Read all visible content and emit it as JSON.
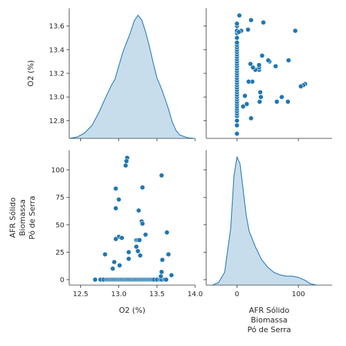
{
  "chart_data": {
    "type": "scatter",
    "variables": [
      "O2 (%)",
      "AFR Sólido\nBiomassa\nPó de Serra"
    ],
    "o2_ticks": [
      12.8,
      13.0,
      13.2,
      13.4,
      13.6
    ],
    "o2_xticks": [
      12.5,
      13.0,
      13.5,
      14.0
    ],
    "afr_ticks": [
      0,
      25,
      50,
      75,
      100
    ],
    "afr_xticks": [
      0,
      100
    ],
    "o2_range": [
      12.65,
      13.75
    ],
    "o2_xrange": [
      12.35,
      14.0
    ],
    "afr_range": [
      -5,
      118
    ],
    "afr_xrange": [
      -50,
      155
    ],
    "grid": false,
    "points": [
      {
        "o2": 12.69,
        "afr": 0
      },
      {
        "o2": 12.76,
        "afr": 0
      },
      {
        "o2": 12.8,
        "afr": 0
      },
      {
        "o2": 12.84,
        "afr": 0
      },
      {
        "o2": 12.86,
        "afr": 0
      },
      {
        "o2": 12.88,
        "afr": 0
      },
      {
        "o2": 12.9,
        "afr": 0
      },
      {
        "o2": 12.92,
        "afr": 0
      },
      {
        "o2": 12.94,
        "afr": 0
      },
      {
        "o2": 12.96,
        "afr": 0
      },
      {
        "o2": 12.98,
        "afr": 0
      },
      {
        "o2": 13.0,
        "afr": 0
      },
      {
        "o2": 13.02,
        "afr": 0
      },
      {
        "o2": 13.04,
        "afr": 0
      },
      {
        "o2": 13.06,
        "afr": 0
      },
      {
        "o2": 13.08,
        "afr": 0
      },
      {
        "o2": 13.1,
        "afr": 0
      },
      {
        "o2": 13.12,
        "afr": 0
      },
      {
        "o2": 13.14,
        "afr": 0
      },
      {
        "o2": 13.16,
        "afr": 0
      },
      {
        "o2": 13.18,
        "afr": 0
      },
      {
        "o2": 13.2,
        "afr": 0
      },
      {
        "o2": 13.22,
        "afr": 0
      },
      {
        "o2": 13.24,
        "afr": 0
      },
      {
        "o2": 13.26,
        "afr": 0
      },
      {
        "o2": 13.28,
        "afr": 0
      },
      {
        "o2": 13.3,
        "afr": 0
      },
      {
        "o2": 13.32,
        "afr": 0
      },
      {
        "o2": 13.34,
        "afr": 0
      },
      {
        "o2": 13.36,
        "afr": 0
      },
      {
        "o2": 13.38,
        "afr": 0
      },
      {
        "o2": 13.4,
        "afr": 0
      },
      {
        "o2": 13.42,
        "afr": 0
      },
      {
        "o2": 13.44,
        "afr": 0
      },
      {
        "o2": 13.46,
        "afr": 0
      },
      {
        "o2": 13.5,
        "afr": 0
      },
      {
        "o2": 13.54,
        "afr": 0
      },
      {
        "o2": 13.56,
        "afr": 0
      },
      {
        "o2": 13.6,
        "afr": 0
      },
      {
        "o2": 13.62,
        "afr": 0
      },
      {
        "o2": 13.11,
        "afr": 111
      },
      {
        "o2": 13.1,
        "afr": 108
      },
      {
        "o2": 13.09,
        "afr": 104
      },
      {
        "o2": 13.56,
        "afr": 95
      },
      {
        "o2": 13.31,
        "afr": 84
      },
      {
        "o2": 12.96,
        "afr": 83
      },
      {
        "o2": 13.0,
        "afr": 73
      },
      {
        "o2": 12.96,
        "afr": 65
      },
      {
        "o2": 13.26,
        "afr": 63
      },
      {
        "o2": 13.3,
        "afr": 53
      },
      {
        "o2": 13.31,
        "afr": 51
      },
      {
        "o2": 13.35,
        "afr": 41
      },
      {
        "o2": 13.63,
        "afr": 43
      },
      {
        "o2": 13.0,
        "afr": 39
      },
      {
        "o2": 13.04,
        "afr": 38
      },
      {
        "o2": 12.96,
        "afr": 37
      },
      {
        "o2": 13.23,
        "afr": 36
      },
      {
        "o2": 13.25,
        "afr": 36
      },
      {
        "o2": 13.27,
        "afr": 36
      },
      {
        "o2": 13.23,
        "afr": 30
      },
      {
        "o2": 13.25,
        "afr": 26
      },
      {
        "o2": 13.13,
        "afr": 25
      },
      {
        "o2": 12.82,
        "afr": 23
      },
      {
        "o2": 13.65,
        "afr": 23
      },
      {
        "o2": 13.28,
        "afr": 22
      },
      {
        "o2": 13.13,
        "afr": 19
      },
      {
        "o2": 13.57,
        "afr": 18
      },
      {
        "o2": 12.94,
        "afr": 16
      },
      {
        "o2": 13.01,
        "afr": 13
      },
      {
        "o2": 12.92,
        "afr": 10
      },
      {
        "o2": 13.56,
        "afr": 7
      },
      {
        "o2": 13.69,
        "afr": 4
      },
      {
        "o2": 13.55,
        "afr": 3
      }
    ],
    "kde_o2": {
      "x": [
        12.35,
        12.45,
        12.55,
        12.65,
        12.75,
        12.8,
        12.85,
        12.9,
        12.95,
        13.0,
        13.05,
        13.1,
        13.15,
        13.2,
        13.25,
        13.3,
        13.35,
        13.4,
        13.45,
        13.5,
        13.55,
        13.6,
        13.65,
        13.7,
        13.75,
        13.8,
        13.9,
        14.0
      ],
      "density": [
        0.0,
        0.02,
        0.08,
        0.2,
        0.42,
        0.55,
        0.68,
        0.8,
        0.9,
        1.1,
        1.3,
        1.45,
        1.6,
        1.78,
        1.87,
        1.8,
        1.62,
        1.4,
        1.15,
        0.92,
        0.78,
        0.62,
        0.45,
        0.25,
        0.12,
        0.05,
        0.01,
        0.0
      ]
    },
    "kde_afr": {
      "x": [
        -40,
        -30,
        -20,
        -10,
        -5,
        0,
        5,
        10,
        15,
        20,
        30,
        40,
        50,
        60,
        70,
        80,
        90,
        100,
        110,
        120,
        130
      ],
      "density": [
        0.0,
        0.02,
        0.1,
        0.45,
        0.85,
        1.0,
        0.95,
        0.75,
        0.55,
        0.42,
        0.3,
        0.2,
        0.14,
        0.1,
        0.08,
        0.07,
        0.07,
        0.06,
        0.04,
        0.01,
        0.0
      ]
    }
  }
}
